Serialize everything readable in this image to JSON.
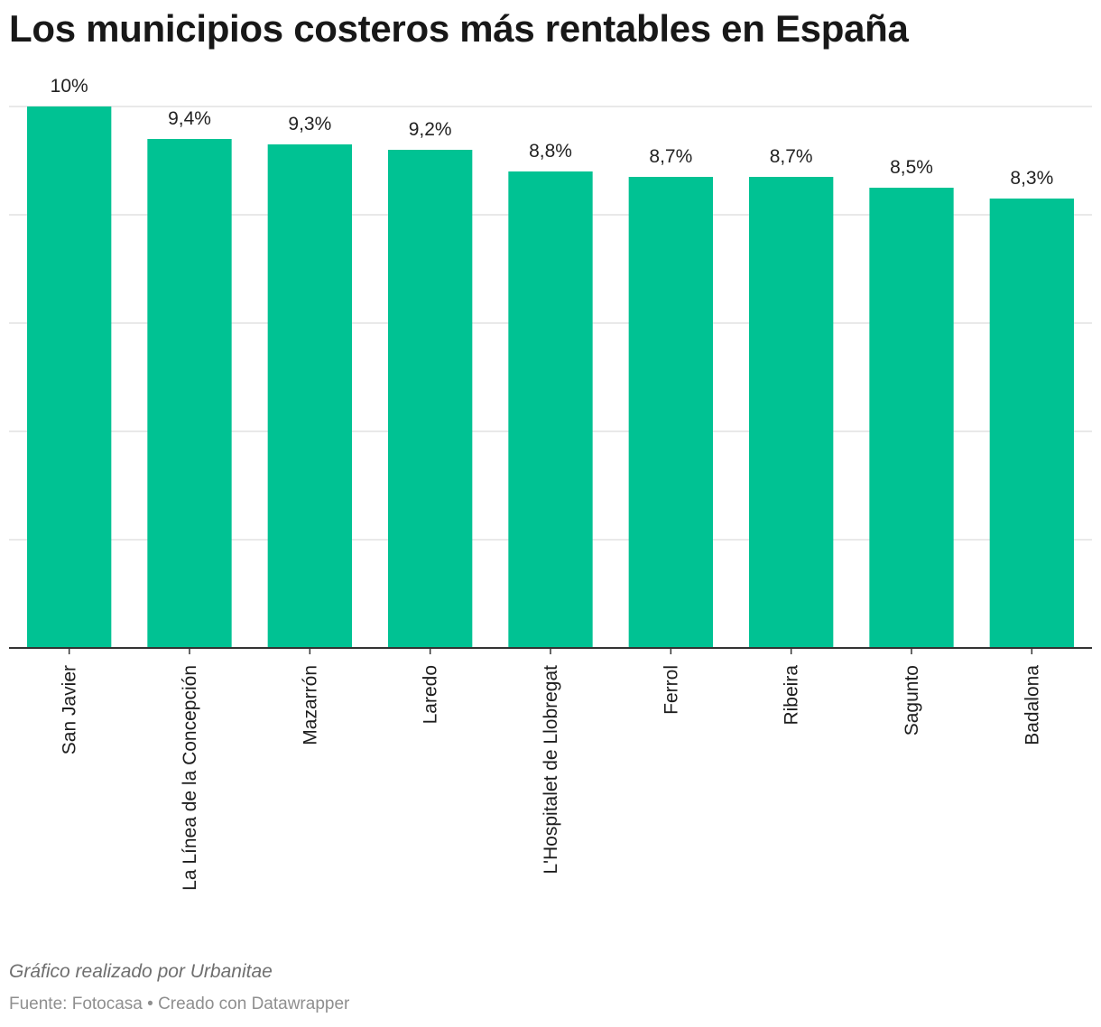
{
  "chart_data": {
    "type": "bar",
    "title": "Los municipios costeros más rentables en España",
    "categories": [
      "San Javier",
      "La Línea de la Concepción",
      "Mazarrón",
      "Laredo",
      "L'Hospitalet de Llobregat",
      "Ferrol",
      "Ribeira",
      "Sagunto",
      "Badalona"
    ],
    "values": [
      10,
      9.4,
      9.3,
      9.2,
      8.8,
      8.7,
      8.7,
      8.5,
      8.3
    ],
    "value_labels": [
      "10%",
      "9,4%",
      "9,3%",
      "9,2%",
      "8,8%",
      "8,7%",
      "8,7%",
      "8,5%",
      "8,3%"
    ],
    "ylim": [
      0,
      10
    ],
    "gridlines": [
      0,
      2,
      4,
      6,
      8,
      10
    ],
    "grid": true,
    "legend": "none",
    "bar_color": "#00c293",
    "notes": "Gráfico realizado por Urbanitae",
    "source_line": "Fuente: Fotocasa • Creado con Datawrapper"
  }
}
